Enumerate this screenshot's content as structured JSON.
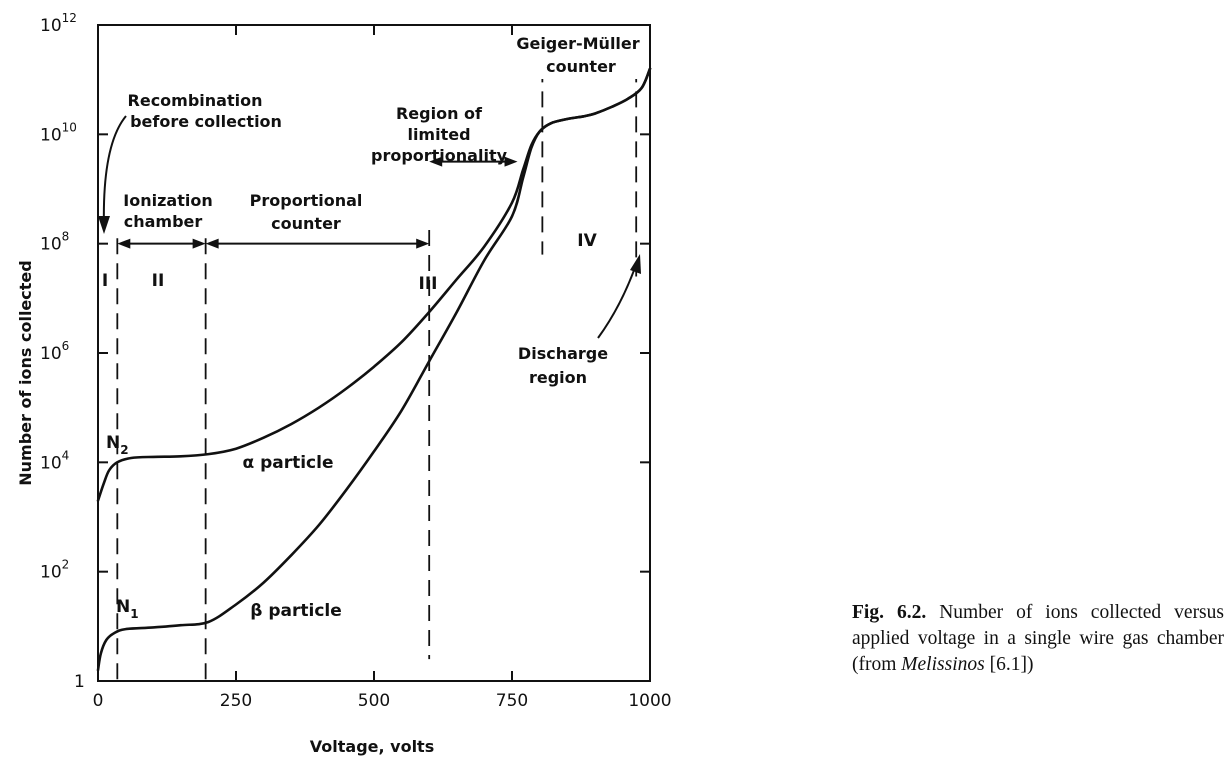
{
  "chart_data": {
    "type": "line",
    "xlabel": "Voltage, volts",
    "ylabel": "Number of ions collected",
    "xlim": [
      0,
      1000
    ],
    "ylim_log10": [
      0,
      12
    ],
    "y_scale": "log",
    "x_ticks": [
      0,
      250,
      500,
      750,
      1000
    ],
    "x_tick_labels": [
      "0",
      "250",
      "500",
      "750",
      "1000"
    ],
    "y_ticks_log10": [
      0,
      2,
      4,
      6,
      8,
      10,
      12
    ],
    "y_tick_labels": [
      {
        "base": "1",
        "exp": ""
      },
      {
        "base": "10",
        "exp": "2"
      },
      {
        "base": "10",
        "exp": "4"
      },
      {
        "base": "10",
        "exp": "6"
      },
      {
        "base": "10",
        "exp": "8"
      },
      {
        "base": "10",
        "exp": "10"
      },
      {
        "base": "10",
        "exp": "12"
      }
    ],
    "grid": false,
    "series": [
      {
        "name": "α particle",
        "x": [
          0,
          10,
          20,
          35,
          60,
          100,
          150,
          200,
          250,
          300,
          350,
          400,
          450,
          500,
          550,
          600,
          650,
          700,
          750,
          770,
          785,
          800,
          820,
          850,
          880,
          900,
          930,
          960,
          985,
          1000
        ],
        "log10_y": [
          3.3,
          3.6,
          3.85,
          4.0,
          4.08,
          4.1,
          4.11,
          4.15,
          4.25,
          4.45,
          4.7,
          5.0,
          5.35,
          5.75,
          6.2,
          6.75,
          7.35,
          7.95,
          8.75,
          9.35,
          9.8,
          10.05,
          10.2,
          10.28,
          10.33,
          10.38,
          10.5,
          10.65,
          10.85,
          11.2
        ]
      },
      {
        "name": "β particle",
        "x": [
          0,
          5,
          15,
          30,
          50,
          100,
          150,
          200,
          250,
          300,
          350,
          400,
          450,
          500,
          550,
          600,
          650,
          700,
          750,
          770,
          785,
          800,
          820,
          850,
          880,
          900,
          930,
          960,
          985,
          1000
        ],
        "log10_y": [
          0.2,
          0.5,
          0.75,
          0.88,
          0.95,
          0.98,
          1.02,
          1.08,
          1.4,
          1.8,
          2.3,
          2.85,
          3.5,
          4.2,
          4.95,
          5.85,
          6.75,
          7.7,
          8.5,
          9.2,
          9.75,
          10.05,
          10.2,
          10.28,
          10.33,
          10.38,
          10.5,
          10.65,
          10.85,
          11.2
        ]
      }
    ],
    "region_boundaries": [
      {
        "x": 35,
        "log10_top": 8.1,
        "log10_bottom": 0.0
      },
      {
        "x": 195,
        "log10_top": 8.1,
        "log10_bottom": 0.0
      },
      {
        "x": 600,
        "log10_top": 8.25,
        "log10_bottom": 0.4
      },
      {
        "x": 805,
        "log10_top": 11.7,
        "log10_bottom": 7.8
      },
      {
        "x": 975,
        "log10_top": 11.7,
        "log10_bottom": 7.4
      }
    ],
    "arrows": [
      {
        "x1": 35,
        "x2": 195,
        "log10_y": 8.0
      },
      {
        "x1": 195,
        "x2": 600,
        "log10_y": 8.0
      },
      {
        "x1": 600,
        "x2": 760,
        "log10_y": 9.5
      },
      {
        "x1": 805,
        "x2": 975,
        "log10_y": 11.35
      }
    ],
    "annotations": {
      "region_numerals": [
        "I",
        "II",
        "III",
        "IV"
      ],
      "recombination_line1": "Recombination",
      "recombination_line2": "before collection",
      "ionization_line1": "Ionization",
      "ionization_line2": "chamber",
      "proportional_line1": "Proportional",
      "proportional_line2": "counter",
      "limited_line1": "Region of",
      "limited_line2": "limited",
      "limited_line3": "proportionality",
      "geiger_line1": "Geiger-Müller",
      "geiger_line2": "counter",
      "discharge_line1": "Discharge",
      "discharge_line2": "region",
      "alpha_label": "α particle",
      "beta_label": "β particle",
      "n2_base": "N",
      "n2_sub": "2",
      "n1_base": "N",
      "n1_sub": "1"
    }
  },
  "caption": {
    "fig_label": "Fig. 6.2.",
    "text_main": " Number of ions collected versus applied voltage in a single wire gas chamber (from ",
    "text_italic": "Melissinos",
    "text_end": " [6.1])"
  }
}
